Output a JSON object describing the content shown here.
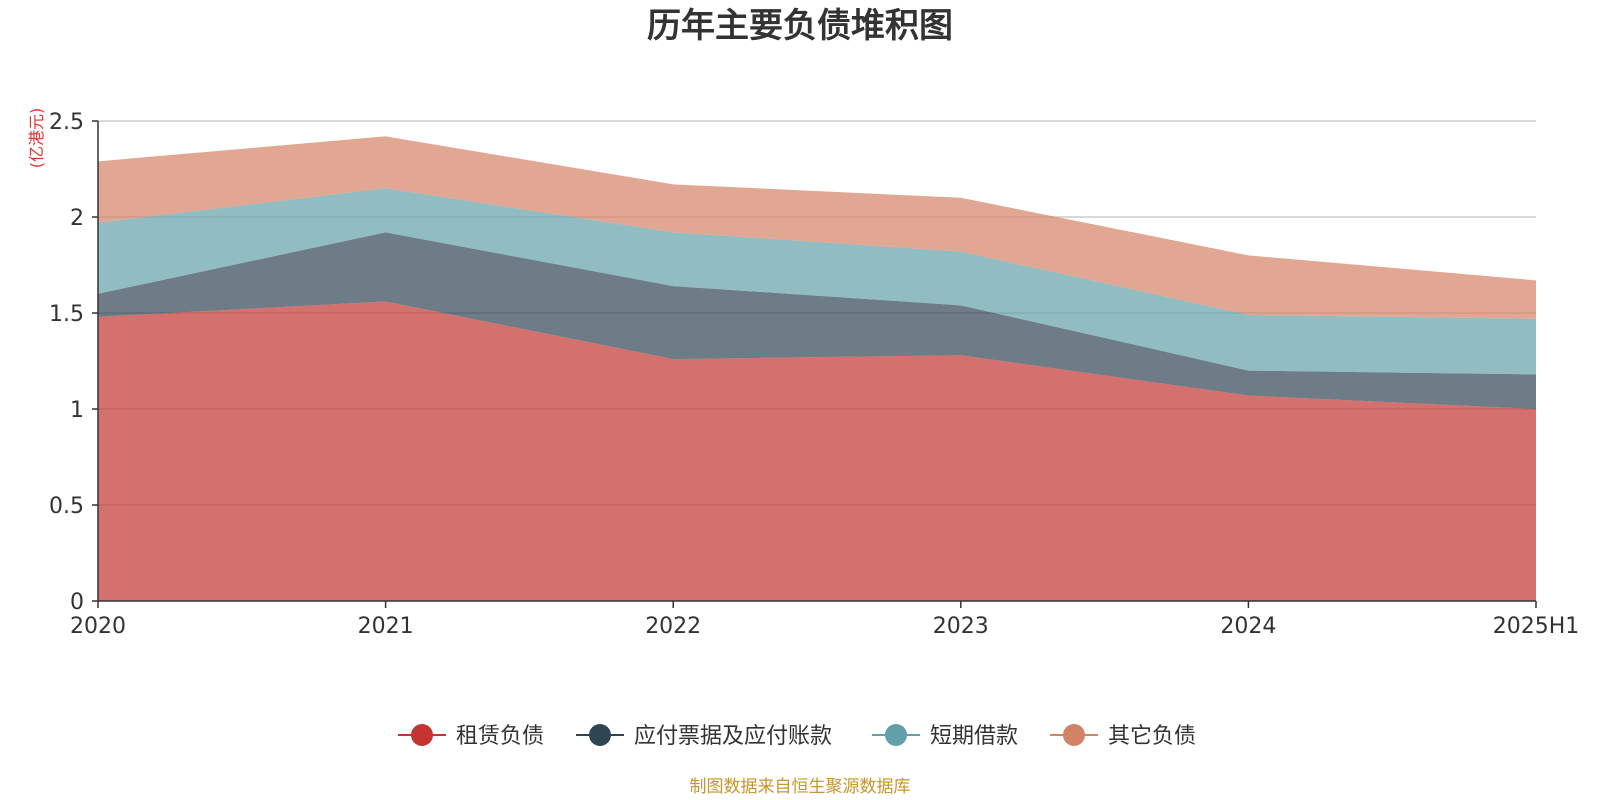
{
  "chart_data": {
    "type": "area",
    "stacked": true,
    "title": "历年主要负债堆积图",
    "unit": "(亿港元)",
    "ylim": [
      0,
      2.5
    ],
    "yticks": [
      0,
      0.5,
      1,
      1.5,
      2,
      2.5
    ],
    "ytick_labels": [
      "0",
      "0.5",
      "1",
      "1.5",
      "2",
      "2.5"
    ],
    "categories": [
      "2020",
      "2021",
      "2022",
      "2023",
      "2024",
      "2025H1"
    ],
    "grid": true,
    "legend_position": "bottom",
    "series": [
      {
        "name": "租赁负债",
        "color": "#c23531",
        "values": [
          1.48,
          1.56,
          1.26,
          1.28,
          1.07,
          1.0
        ]
      },
      {
        "name": "应付票据及应付账款",
        "color": "#2f4554",
        "values": [
          0.12,
          0.36,
          0.38,
          0.26,
          0.13,
          0.18
        ]
      },
      {
        "name": "短期借款",
        "color": "#61a0a8",
        "values": [
          0.37,
          0.23,
          0.28,
          0.28,
          0.29,
          0.29
        ]
      },
      {
        "name": "其它负债",
        "color": "#d48265",
        "values": [
          0.32,
          0.27,
          0.25,
          0.28,
          0.31,
          0.2
        ]
      }
    ]
  },
  "footer": {
    "source": "制图数据来自恒生聚源数据库"
  }
}
